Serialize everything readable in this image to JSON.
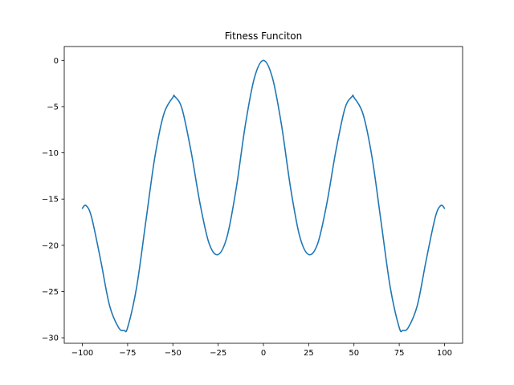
{
  "chart_data": {
    "type": "line",
    "title": "Fitness Funciton",
    "xlabel": "",
    "ylabel": "",
    "xlim": [
      -110,
      110
    ],
    "ylim": [
      -30.6,
      1.5
    ],
    "x_ticks": [
      -100,
      -75,
      -50,
      -25,
      0,
      25,
      50,
      75,
      100
    ],
    "x_tick_labels": [
      "−100",
      "−75",
      "−50",
      "−25",
      "0",
      "25",
      "50",
      "75",
      "100"
    ],
    "y_ticks": [
      0,
      -5,
      -10,
      -15,
      -20,
      -25,
      -30
    ],
    "y_tick_labels": [
      "0",
      "−5",
      "−10",
      "−15",
      "−20",
      "−25",
      "−30"
    ],
    "grid": false,
    "legend": "none",
    "line_color": "#1f77b4",
    "series": [
      {
        "x": [
          -100,
          -98,
          -95,
          -90,
          -85,
          -80,
          -77,
          -75,
          -70,
          -65,
          -60,
          -55,
          -50,
          -49,
          -45,
          -40,
          -35,
          -30,
          -25,
          -20,
          -15,
          -10,
          -5,
          0,
          5,
          10,
          15,
          20,
          25,
          30,
          35,
          40,
          45,
          49,
          50,
          55,
          60,
          65,
          70,
          75,
          77,
          80,
          85,
          90,
          95,
          98,
          100
        ],
        "y": [
          -16.0,
          -15.7,
          -16.9,
          -21.5,
          -26.5,
          -28.9,
          -29.2,
          -28.9,
          -24.5,
          -17.5,
          -10.5,
          -5.8,
          -4.0,
          -3.9,
          -5.2,
          -9.8,
          -15.5,
          -19.8,
          -21.0,
          -19.0,
          -13.8,
          -7.0,
          -1.9,
          0.0,
          -1.9,
          -7.0,
          -13.8,
          -19.0,
          -21.0,
          -19.8,
          -15.5,
          -9.8,
          -5.2,
          -3.9,
          -4.0,
          -5.8,
          -10.5,
          -17.5,
          -24.5,
          -28.9,
          -29.2,
          -28.9,
          -26.5,
          -21.5,
          -16.9,
          -15.7,
          -16.0
        ]
      }
    ]
  }
}
